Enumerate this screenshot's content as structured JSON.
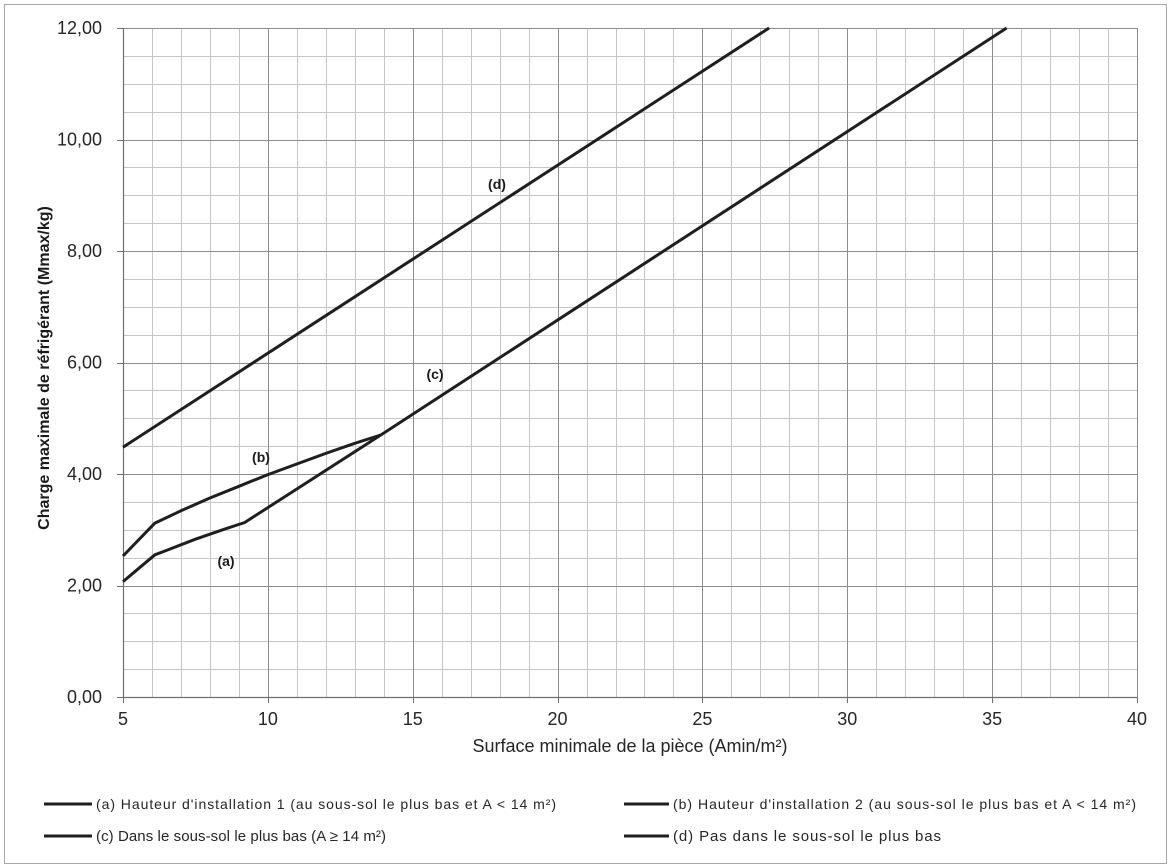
{
  "chart_data": {
    "type": "line",
    "xlabel": "Surface minimale de la pièce (Amin/m²)",
    "ylabel": "Charge maximale de réfrigérant (Mmax/kg)",
    "xlim": [
      5,
      40
    ],
    "ylim": [
      0,
      12
    ],
    "x_ticks": [
      {
        "value": 5,
        "label": "5"
      },
      {
        "value": 10,
        "label": "10"
      },
      {
        "value": 15,
        "label": "15"
      },
      {
        "value": 20,
        "label": "20"
      },
      {
        "value": 25,
        "label": "25"
      },
      {
        "value": 30,
        "label": "30"
      },
      {
        "value": 35,
        "label": "35"
      },
      {
        "value": 40,
        "label": "40"
      }
    ],
    "y_ticks": [
      {
        "value": 0,
        "label": "0,00"
      },
      {
        "value": 2,
        "label": "2,00"
      },
      {
        "value": 4,
        "label": "4,00"
      },
      {
        "value": 6,
        "label": "6,00"
      },
      {
        "value": 8,
        "label": "8,00"
      },
      {
        "value": 10,
        "label": "10,00"
      },
      {
        "value": 12,
        "label": "12,00"
      }
    ],
    "grid": {
      "on": true,
      "x_major": 5,
      "x_minor": 1,
      "y_major": 2,
      "y_minor": 0.5
    },
    "legend_position": "bottom",
    "colors": {
      "series": "#1f1f1f",
      "grid_major": "#8c8c8c",
      "grid_minor": "#c6c6c6",
      "axis": "#6f6f6f",
      "frame": "#a8a8a8"
    },
    "series": [
      {
        "name": "(a) Hauteur d'installation 1 (au sous-sol le plus bas et A < 14 m²)",
        "label": "(a)",
        "x": [
          5,
          6.1,
          6.5,
          7,
          7.5,
          8,
          8.5,
          9.2,
          13.9
        ],
        "y": [
          2.07,
          2.55,
          2.63,
          2.73,
          2.83,
          2.92,
          3.01,
          3.13,
          4.7
        ]
      },
      {
        "name": "(b) Hauteur d'installation 2 (au sous-sol le plus bas et A < 14 m²)",
        "label": "(b)",
        "x": [
          5,
          6.1,
          7,
          8,
          9,
          10,
          11,
          12,
          13,
          13.9
        ],
        "y": [
          2.53,
          3.12,
          3.34,
          3.57,
          3.78,
          3.99,
          4.18,
          4.37,
          4.55,
          4.7
        ]
      },
      {
        "name": "(c) Dans le sous-sol le plus bas (A ≥ 14 m²)",
        "label": "(c)",
        "x": [
          13.9,
          35.5
        ],
        "y": [
          4.7,
          12.0
        ]
      },
      {
        "name": "(d) Pas dans le sous-sol le plus bas",
        "label": "(d)",
        "x": [
          5,
          27.3
        ],
        "y": [
          4.48,
          12.0
        ]
      }
    ]
  }
}
